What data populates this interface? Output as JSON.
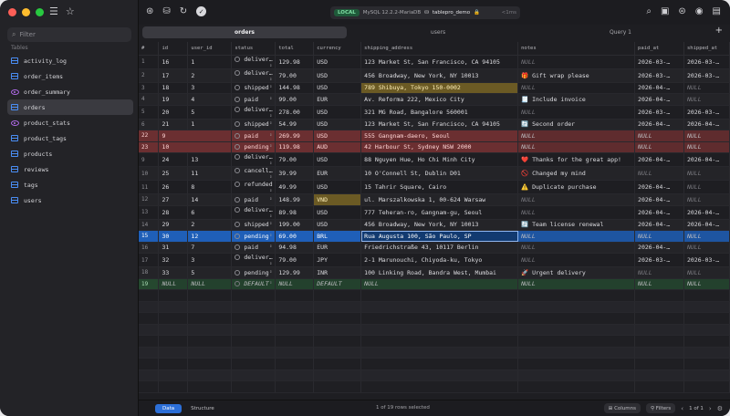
{
  "sidebar": {
    "filter_placeholder": "Filter",
    "section_label": "Tables",
    "items": [
      {
        "label": "activity_log",
        "kind": "table"
      },
      {
        "label": "order_items",
        "kind": "table"
      },
      {
        "label": "order_summary",
        "kind": "view"
      },
      {
        "label": "orders",
        "kind": "table",
        "active": true
      },
      {
        "label": "product_stats",
        "kind": "view"
      },
      {
        "label": "product_tags",
        "kind": "table"
      },
      {
        "label": "products",
        "kind": "table"
      },
      {
        "label": "reviews",
        "kind": "table"
      },
      {
        "label": "tags",
        "kind": "table"
      },
      {
        "label": "users",
        "kind": "table"
      }
    ]
  },
  "toolbar": {
    "badge": "LOCAL",
    "server": "MySQL 12.2.2-MariaDB",
    "database": "tablepro_demo",
    "latency": "<1ms",
    "icons": [
      "connection-icon",
      "database-icon",
      "refresh-icon",
      "check-icon",
      "search-icon",
      "console-icon",
      "inspector-icon",
      "preview-icon",
      "sidebar-toggle-icon"
    ]
  },
  "tabs": [
    "orders",
    "users",
    "Query 1"
  ],
  "grid": {
    "columns": [
      "#",
      "id",
      "user_id",
      "status",
      "total",
      "currency",
      "shipping_address",
      "notes",
      "paid_at",
      "shipped_at"
    ],
    "rows": [
      {
        "n": "1",
        "cells": [
          "16",
          "1",
          "deliver…",
          "129.98",
          "USD",
          "123 Market St, San Francisco, CA 94105",
          "NULL",
          "2026-03-…",
          "2026-03-…"
        ]
      },
      {
        "n": "2",
        "cells": [
          "17",
          "2",
          "deliver…",
          "79.00",
          "USD",
          "456 Broadway, New York, NY 10013",
          "🎁 Gift wrap please",
          "2026-03-…",
          "2026-03-…"
        ]
      },
      {
        "n": "3",
        "cells": [
          "18",
          "3",
          "shipped",
          "144.98",
          "USD",
          "789 Shibuya, Tokyo 150-0002",
          "NULL",
          "2026-04-…",
          "NULL"
        ],
        "style": "hl-address"
      },
      {
        "n": "4",
        "cells": [
          "19",
          "4",
          "paid",
          "99.00",
          "EUR",
          "Av. Reforma 222, Mexico City",
          "🧾 Include invoice",
          "2026-04-…",
          "NULL"
        ]
      },
      {
        "n": "5",
        "cells": [
          "20",
          "5",
          "deliver…",
          "278.00",
          "USD",
          "321 MG Road, Bangalore 560001",
          "NULL",
          "2026-03-…",
          "2026-03-…"
        ]
      },
      {
        "n": "6",
        "cells": [
          "21",
          "1",
          "shipped",
          "54.99",
          "USD",
          "123 Market St, San Francisco, CA 94105",
          "🔄 Second order",
          "2026-04-…",
          "2026-04-…"
        ]
      },
      {
        "n": "22",
        "cells": [
          "9",
          "paid",
          "269.99",
          "USD",
          "555 Gangnam-daero, Seoul",
          "NULL",
          "NULL",
          "NULL"
        ],
        "style": "red",
        "merged": true
      },
      {
        "n": "23",
        "cells": [
          "10",
          "pending",
          "119.98",
          "AUD",
          "42 Harbour St, Sydney NSW 2000",
          "NULL",
          "NULL",
          "NULL"
        ],
        "style": "red",
        "merged": true
      },
      {
        "n": "9",
        "cells": [
          "24",
          "13",
          "deliver…",
          "79.00",
          "USD",
          "88 Nguyen Hue, Ho Chi Minh City",
          "❤️ Thanks for the great app!",
          "2026-04-…",
          "2026-04-…"
        ]
      },
      {
        "n": "10",
        "cells": [
          "25",
          "11",
          "cancell…",
          "39.99",
          "EUR",
          "10 O'Connell St, Dublin D01",
          "🚫 Changed my mind",
          "NULL",
          "NULL"
        ]
      },
      {
        "n": "11",
        "cells": [
          "26",
          "8",
          "refunded",
          "49.99",
          "USD",
          "15 Tahrir Square, Cairo",
          "⚠️ Duplicate purchase",
          "2026-04-…",
          "NULL"
        ]
      },
      {
        "n": "12",
        "cells": [
          "27",
          "14",
          "paid",
          "148.99",
          "VND",
          "ul. Marszalkowska 1, 00-624 Warsaw",
          "NULL",
          "2026-04-…",
          "NULL"
        ],
        "style": "hl-currency"
      },
      {
        "n": "13",
        "cells": [
          "28",
          "6",
          "deliver…",
          "89.98",
          "USD",
          "777 Teheran-ro, Gangnam-gu, Seoul",
          "NULL",
          "2026-04-…",
          "2026-04-…"
        ]
      },
      {
        "n": "14",
        "cells": [
          "29",
          "2",
          "shipped",
          "199.00",
          "USD",
          "456 Broadway, New York, NY 10013",
          "🔄 Team license renewal",
          "2026-04-…",
          "2026-04-…"
        ]
      },
      {
        "n": "15",
        "cells": [
          "30",
          "12",
          "pending",
          "69.00",
          "BRL",
          "Rua Augusta 100, São Paulo, SP",
          "NULL",
          "NULL",
          "NULL"
        ],
        "style": "selected"
      },
      {
        "n": "16",
        "cells": [
          "31",
          "7",
          "paid",
          "94.98",
          "EUR",
          "Friedrichstraße 43, 10117 Berlin",
          "NULL",
          "2026-04-…",
          "NULL"
        ]
      },
      {
        "n": "17",
        "cells": [
          "32",
          "3",
          "deliver…",
          "79.00",
          "JPY",
          "2-1 Marunouchi, Chiyoda-ku, Tokyo",
          "NULL",
          "2026-03-…",
          "2026-03-…"
        ]
      },
      {
        "n": "18",
        "cells": [
          "33",
          "5",
          "pending",
          "129.99",
          "INR",
          "100 Linking Road, Bandra West, Mumbai",
          "🚀 Urgent delivery",
          "NULL",
          "NULL"
        ]
      },
      {
        "n": "19",
        "cells": [
          "NULL",
          "NULL",
          "DEFAULT",
          "NULL",
          "DEFAULT",
          "NULL",
          "NULL",
          "NULL",
          "NULL"
        ],
        "style": "newrow"
      }
    ]
  },
  "statusbar": {
    "tab_data": "Data",
    "tab_structure": "Structure",
    "selection": "1 of 19 rows selected",
    "columns_label": "Columns",
    "filters_label": "Filters",
    "pagination": "1 of 1"
  },
  "colors": {
    "accent": "#2c6fd8",
    "deleted_row": "#6b2f31",
    "new_row": "#25482f",
    "modified_cell": "#6b5a24"
  }
}
